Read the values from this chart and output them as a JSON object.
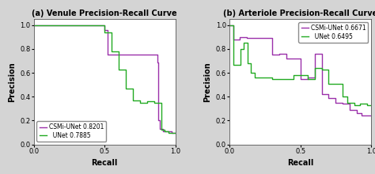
{
  "title_a": "(a) Venule Precision-Recall Curve",
  "title_b": "(b) Arteriole Precision-Recall Curve",
  "xlabel": "Recall",
  "ylabel": "Precision",
  "legend_a_csmi": "CSMi-UNet 0.8201",
  "legend_a_unet": "  UNet 0.7885",
  "legend_b_csmi": "CSMi-UNet 0.6671",
  "legend_b_unet": "  UNet 0.6495",
  "color_csmi": "#9B30AA",
  "color_unet": "#22AA22",
  "venule_csmi_recall": [
    0.0,
    0.5,
    0.5,
    0.52,
    0.52,
    0.87,
    0.87,
    0.88,
    0.88,
    0.89,
    0.89,
    0.91,
    0.91,
    0.97,
    0.97,
    1.0
  ],
  "venule_csmi_precision": [
    1.0,
    1.0,
    0.96,
    0.96,
    0.75,
    0.75,
    0.69,
    0.69,
    0.2,
    0.2,
    0.13,
    0.13,
    0.11,
    0.11,
    0.1,
    0.1
  ],
  "venule_unet_recall": [
    0.0,
    0.5,
    0.5,
    0.55,
    0.55,
    0.6,
    0.6,
    0.65,
    0.65,
    0.7,
    0.7,
    0.75,
    0.75,
    0.8,
    0.8,
    0.85,
    0.85,
    0.87,
    0.87,
    0.9,
    0.9,
    0.92,
    0.92,
    0.95,
    0.95,
    0.98,
    0.98,
    1.0
  ],
  "venule_unet_precision": [
    1.0,
    1.0,
    0.94,
    0.94,
    0.78,
    0.78,
    0.63,
    0.63,
    0.47,
    0.47,
    0.37,
    0.37,
    0.35,
    0.35,
    0.36,
    0.36,
    0.35,
    0.35,
    0.35,
    0.35,
    0.12,
    0.12,
    0.11,
    0.11,
    0.1,
    0.1,
    0.1,
    0.1
  ],
  "arteriole_csmi_recall": [
    0.0,
    0.03,
    0.03,
    0.07,
    0.07,
    0.12,
    0.12,
    0.3,
    0.3,
    0.35,
    0.35,
    0.4,
    0.4,
    0.5,
    0.5,
    0.55,
    0.55,
    0.6,
    0.6,
    0.65,
    0.65,
    0.7,
    0.7,
    0.75,
    0.75,
    0.8,
    0.8,
    0.85,
    0.85,
    0.9,
    0.9,
    0.93,
    0.93,
    1.0
  ],
  "arteriole_csmi_precision": [
    1.0,
    1.0,
    0.88,
    0.88,
    0.9,
    0.9,
    0.89,
    0.89,
    0.75,
    0.75,
    0.76,
    0.76,
    0.72,
    0.72,
    0.55,
    0.55,
    0.56,
    0.56,
    0.76,
    0.76,
    0.42,
    0.42,
    0.39,
    0.39,
    0.35,
    0.35,
    0.34,
    0.34,
    0.29,
    0.29,
    0.26,
    0.26,
    0.24,
    0.24
  ],
  "arteriole_unet_recall": [
    0.0,
    0.03,
    0.03,
    0.08,
    0.08,
    0.1,
    0.1,
    0.13,
    0.13,
    0.15,
    0.15,
    0.18,
    0.18,
    0.3,
    0.3,
    0.45,
    0.45,
    0.55,
    0.55,
    0.6,
    0.6,
    0.65,
    0.65,
    0.7,
    0.7,
    0.8,
    0.8,
    0.83,
    0.83,
    0.88,
    0.88,
    0.92,
    0.92,
    0.97,
    0.97,
    1.0
  ],
  "arteriole_unet_precision": [
    1.0,
    1.0,
    0.67,
    0.67,
    0.8,
    0.8,
    0.85,
    0.85,
    0.68,
    0.68,
    0.6,
    0.6,
    0.56,
    0.56,
    0.55,
    0.55,
    0.58,
    0.58,
    0.55,
    0.55,
    0.64,
    0.64,
    0.63,
    0.63,
    0.51,
    0.51,
    0.4,
    0.4,
    0.35,
    0.35,
    0.33,
    0.33,
    0.34,
    0.34,
    0.33,
    0.33
  ],
  "ylim": [
    0.0,
    1.05
  ],
  "xlim": [
    0.0,
    1.0
  ],
  "tick_fontsize": 6,
  "label_fontsize": 7,
  "title_fontsize": 7,
  "legend_fontsize": 5.5,
  "linewidth": 1.0,
  "plot_bg_color": "#ffffff",
  "fig_bg_color": "#d4d4d4"
}
